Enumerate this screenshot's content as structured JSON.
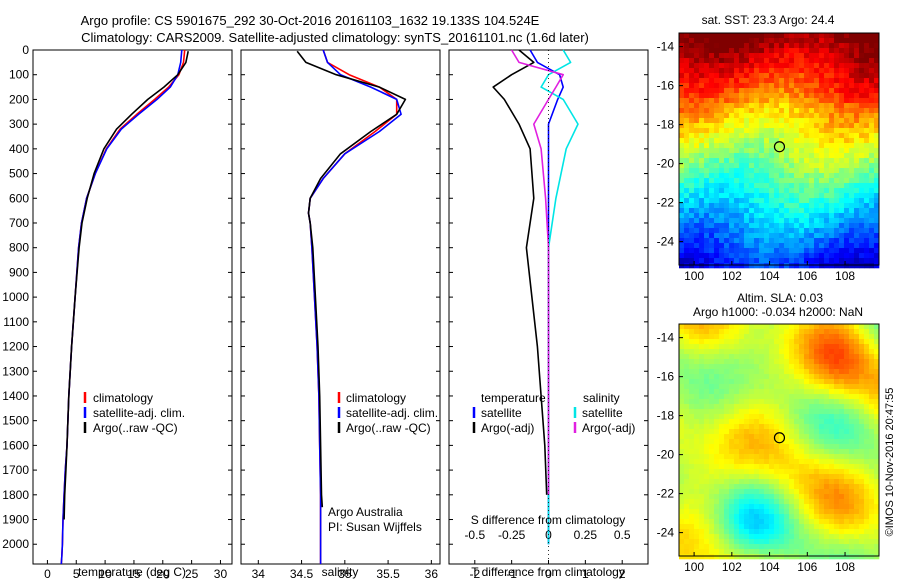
{
  "header": {
    "line1": "Argo profile: CS 5901675_292 30-Oct-2016 20161103_1632 19.133S 104.524E",
    "line2": "Climatology: CARS2009. Satellite-adjusted climatology: synTS_20161101.nc (1.6d later)"
  },
  "colors": {
    "climatology": "#ff0000",
    "satellite": "#0000ff",
    "argo": "#000000",
    "sat_salinity": "#00e5e5",
    "argo_adj_salinity": "#e020e0"
  },
  "panel_temperature": {
    "xlabel": "temperature (deg C)",
    "xticks": [
      "0",
      "5",
      "10",
      "15",
      "20",
      "25",
      "30"
    ],
    "xlim": [
      -2.5,
      32
    ],
    "legend": [
      "climatology",
      "satellite-adj. clim.",
      "Argo(..raw -QC)"
    ]
  },
  "panel_salinity": {
    "xlabel": "salinity",
    "xticks": [
      "34",
      "34.5",
      "35",
      "35.5",
      "36"
    ],
    "xlim": [
      33.8,
      36.1
    ],
    "legend": [
      "climatology",
      "satellite-adj. clim.",
      "Argo(..raw -QC)"
    ],
    "note1": "Argo Australia",
    "note2": "PI: Susan Wijffels"
  },
  "panel_difference": {
    "xlabel": "T difference from climatology",
    "xticks": [
      "-2",
      "-1",
      "0",
      "1",
      "2"
    ],
    "xlim": [
      -2.7,
      2.7
    ],
    "s_label": "S difference from climatology",
    "s_ticks": [
      "-0.5",
      "-0.25",
      "0",
      "0.25",
      "0.5"
    ],
    "legend_t_title": "temperature",
    "legend_t": [
      "satellite",
      "Argo(-adj)"
    ],
    "legend_s_title": "salinity",
    "legend_s": [
      "satellite",
      "Argo(-adj)"
    ]
  },
  "depth_axis": {
    "ylim": [
      0,
      2080
    ],
    "ticks": [
      "0",
      "100",
      "200",
      "300",
      "400",
      "500",
      "600",
      "700",
      "800",
      "900",
      "1000",
      "1100",
      "1200",
      "1300",
      "1400",
      "1500",
      "1600",
      "1700",
      "1800",
      "1900",
      "2000"
    ]
  },
  "map_sst": {
    "title": "sat. SST: 23.3 Argo: 24.4",
    "yticks": [
      "-14",
      "-16",
      "-18",
      "-20",
      "-22",
      "-24"
    ],
    "xticks": [
      "100",
      "102",
      "104",
      "106",
      "108"
    ]
  },
  "map_sla": {
    "title1": "Altim. SLA: 0.03",
    "title2": "Argo h1000: -0.034 h2000: NaN",
    "yticks": [
      "-14",
      "-16",
      "-18",
      "-20",
      "-22",
      "-24"
    ],
    "xticks": [
      "100",
      "102",
      "104",
      "106",
      "108"
    ]
  },
  "credit": "©IMOS 10-Nov-2016 20:47:55",
  "float_position": {
    "lon": 104.524,
    "lat": -19.133
  },
  "chart_data": [
    {
      "type": "line",
      "title": "",
      "xlabel": "temperature (deg C)",
      "ylabel": "",
      "ylim": [
        0,
        2080
      ],
      "y_reversed": true,
      "series": [
        {
          "name": "climatology",
          "x": [
            23.8,
            23.6,
            22.8,
            21.0,
            18.6,
            15.5,
            12.6,
            10.2,
            8.3,
            6.8,
            5.9,
            5.4,
            4.8,
            4.2,
            3.7,
            3.4,
            3.1,
            2.9,
            2.7,
            2.6,
            2.5,
            2.4
          ],
          "y": [
            0,
            50,
            100,
            150,
            200,
            260,
            320,
            400,
            500,
            600,
            700,
            800,
            1000,
            1200,
            1400,
            1600,
            1700,
            1800,
            1900,
            2000,
            2050,
            2080
          ]
        },
        {
          "name": "satellite-adj. clim.",
          "x": [
            23.3,
            23.1,
            22.6,
            21.3,
            19.0,
            15.8,
            12.8,
            10.3,
            8.3,
            6.8,
            5.9,
            5.4,
            4.8,
            4.2,
            3.7,
            3.4,
            3.1,
            2.9,
            2.7,
            2.6,
            2.5,
            2.4
          ],
          "y": [
            0,
            50,
            100,
            150,
            200,
            260,
            320,
            400,
            500,
            600,
            700,
            800,
            1000,
            1200,
            1400,
            1600,
            1700,
            1800,
            1900,
            2000,
            2050,
            2080
          ]
        },
        {
          "name": "Argo(..raw -QC)",
          "x": [
            24.4,
            24.0,
            22.6,
            20.2,
            17.4,
            14.6,
            12.0,
            9.8,
            8.1,
            6.9,
            6.0,
            5.5,
            4.8,
            4.2,
            3.7,
            3.4,
            3.2,
            3.0,
            2.9
          ],
          "y": [
            5,
            50,
            100,
            150,
            200,
            260,
            320,
            400,
            500,
            600,
            700,
            800,
            1000,
            1200,
            1400,
            1600,
            1700,
            1800,
            1900
          ]
        }
      ]
    },
    {
      "type": "line",
      "title": "",
      "xlabel": "salinity",
      "ylabel": "",
      "ylim": [
        0,
        2080
      ],
      "y_reversed": true,
      "series": [
        {
          "name": "climatology",
          "x": [
            34.75,
            34.8,
            35.05,
            35.4,
            35.6,
            35.6,
            35.35,
            35.0,
            34.75,
            34.6,
            34.58,
            34.6,
            34.62,
            34.65,
            34.68,
            34.7,
            34.71,
            34.72,
            34.72,
            34.72,
            34.72
          ],
          "y": [
            0,
            50,
            100,
            150,
            200,
            260,
            330,
            420,
            520,
            600,
            660,
            700,
            800,
            1000,
            1200,
            1400,
            1600,
            1800,
            1900,
            2000,
            2080
          ]
        },
        {
          "name": "satellite-adj. clim.",
          "x": [
            34.75,
            34.8,
            34.95,
            35.3,
            35.6,
            35.65,
            35.4,
            35.0,
            34.75,
            34.6,
            34.58,
            34.6,
            34.62,
            34.65,
            34.68,
            34.7,
            34.71,
            34.72,
            34.72,
            34.72,
            34.72
          ],
          "y": [
            0,
            50,
            100,
            150,
            200,
            260,
            330,
            420,
            520,
            600,
            660,
            700,
            800,
            1000,
            1200,
            1400,
            1600,
            1800,
            1900,
            2000,
            2080
          ]
        },
        {
          "name": "Argo(..raw -QC)",
          "x": [
            34.45,
            34.55,
            34.9,
            35.4,
            35.7,
            35.6,
            35.3,
            34.95,
            34.72,
            34.6,
            34.58,
            34.6,
            34.63,
            34.66,
            34.69,
            34.71,
            34.72,
            34.73,
            34.74
          ],
          "y": [
            5,
            50,
            100,
            150,
            200,
            260,
            330,
            420,
            520,
            600,
            660,
            700,
            800,
            1000,
            1200,
            1400,
            1600,
            1800,
            1850
          ]
        }
      ]
    },
    {
      "type": "line",
      "title": "",
      "xlabel": "T difference from climatology",
      "ylabel": "",
      "ylim": [
        0,
        2080
      ],
      "y_reversed": true,
      "series": [
        {
          "name": "temperature satellite",
          "x": [
            -0.5,
            -0.3,
            0.3,
            0.4,
            0.25,
            0.0,
            0.0,
            0.0,
            0.0,
            0.0,
            0.0,
            0.0
          ],
          "y": [
            0,
            50,
            100,
            150,
            200,
            300,
            400,
            600,
            800,
            1200,
            1600,
            2000
          ]
        },
        {
          "name": "temperature Argo(-adj)",
          "x": [
            -0.8,
            -0.4,
            -1.0,
            -1.5,
            -1.2,
            -0.8,
            -0.5,
            -0.4,
            -0.6,
            -0.3,
            -0.1,
            -0.05
          ],
          "y": [
            0,
            50,
            100,
            150,
            200,
            300,
            400,
            600,
            800,
            1200,
            1600,
            1800
          ]
        },
        {
          "name": "salinity satellite",
          "x": [
            0.1,
            0.15,
            0.0,
            -0.05,
            0.1,
            0.2,
            0.12,
            0.05,
            0.0,
            0.0,
            0.0
          ],
          "y": [
            0,
            50,
            100,
            150,
            200,
            300,
            400,
            600,
            800,
            1200,
            2000
          ]
        },
        {
          "name": "salinity Argo(-adj)",
          "x": [
            -0.25,
            -0.2,
            0.1,
            0.05,
            0.0,
            -0.1,
            -0.05,
            -0.02,
            0.0,
            0.0,
            0.0
          ],
          "y": [
            0,
            50,
            100,
            150,
            200,
            300,
            400,
            600,
            800,
            1200,
            1800
          ]
        }
      ]
    }
  ]
}
